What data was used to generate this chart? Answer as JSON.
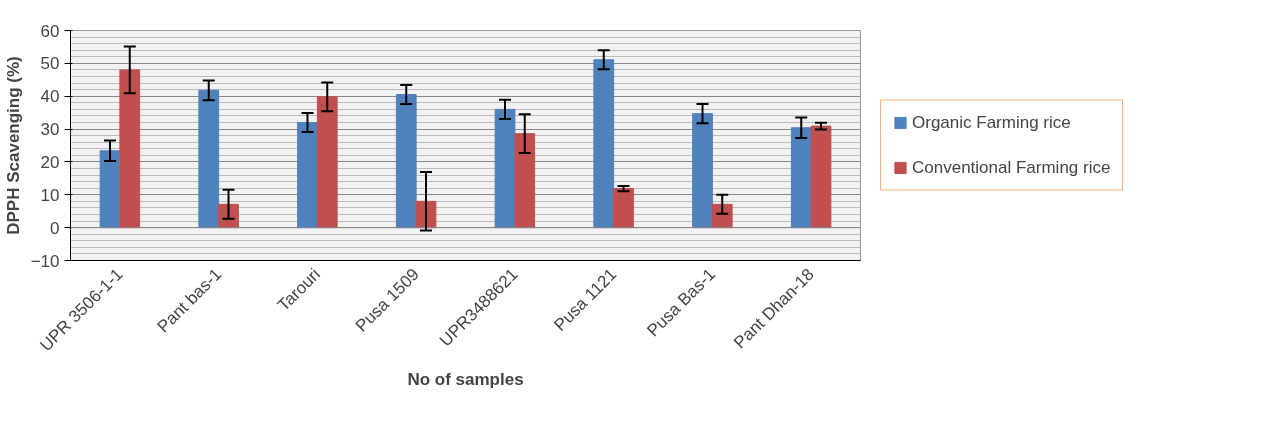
{
  "chart_data": {
    "type": "bar",
    "xlabel": "No of samples",
    "ylabel": "DPPH Scavenging (%)",
    "categories": [
      "UPR 3506-1-1",
      "Pant bas-1",
      "Tarouri",
      "Pusa 1509",
      "UPR3488621",
      "Pusa 1121",
      "Pusa Bas-1",
      "Pant Dhan-18"
    ],
    "series": [
      {
        "name": "Organic Farming rice",
        "color": "#4f81bd",
        "values": [
          23.4,
          41.8,
          32,
          40.5,
          36,
          51.1,
          34.7,
          30.4
        ],
        "errors": [
          3.1,
          3,
          2.9,
          2.9,
          2.9,
          2.9,
          2.9,
          3.1
        ]
      },
      {
        "name": "Conventional Farming rice",
        "color": "#c0504d",
        "values": [
          48,
          7.1,
          39.8,
          8,
          28.6,
          11.9,
          7.1,
          30.9
        ],
        "errors": [
          7.1,
          4.4,
          4.4,
          8.9,
          5.9,
          0.8,
          2.9,
          1
        ]
      }
    ],
    "ylim": [
      -10,
      60
    ],
    "yticks": [
      -10,
      0,
      10,
      20,
      30,
      40,
      50,
      60
    ],
    "grid": "y",
    "legend": "right"
  }
}
